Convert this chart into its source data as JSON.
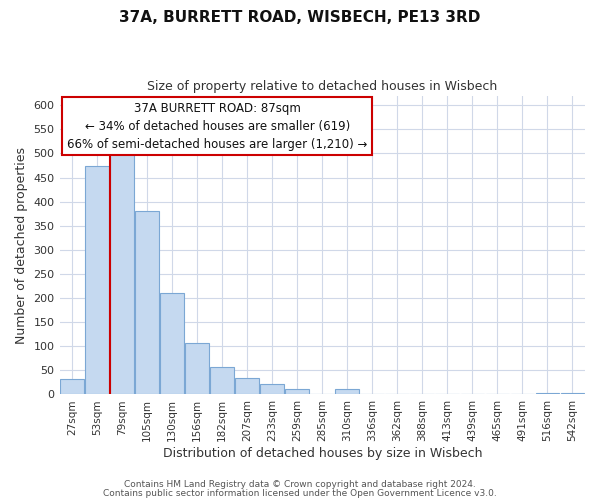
{
  "title": "37A, BURRETT ROAD, WISBECH, PE13 3RD",
  "subtitle": "Size of property relative to detached houses in Wisbech",
  "xlabel": "Distribution of detached houses by size in Wisbech",
  "ylabel": "Number of detached properties",
  "bin_labels": [
    "27sqm",
    "53sqm",
    "79sqm",
    "105sqm",
    "130sqm",
    "156sqm",
    "182sqm",
    "207sqm",
    "233sqm",
    "259sqm",
    "285sqm",
    "310sqm",
    "336sqm",
    "362sqm",
    "388sqm",
    "413sqm",
    "439sqm",
    "465sqm",
    "491sqm",
    "516sqm",
    "542sqm"
  ],
  "bar_values": [
    32,
    474,
    499,
    381,
    210,
    106,
    57,
    35,
    21,
    12,
    0,
    11,
    0,
    0,
    0,
    0,
    0,
    0,
    0,
    2,
    2
  ],
  "bar_color": "#c5d9f0",
  "bar_edge_color": "#7ba7d4",
  "vline_x_index": 2,
  "vline_color": "#cc0000",
  "ylim": [
    0,
    620
  ],
  "yticks": [
    0,
    50,
    100,
    150,
    200,
    250,
    300,
    350,
    400,
    450,
    500,
    550,
    600
  ],
  "annotation_title": "37A BURRETT ROAD: 87sqm",
  "annotation_line1": "← 34% of detached houses are smaller (619)",
  "annotation_line2": "66% of semi-detached houses are larger (1,210) →",
  "footer_line1": "Contains HM Land Registry data © Crown copyright and database right 2024.",
  "footer_line2": "Contains public sector information licensed under the Open Government Licence v3.0.",
  "bg_color": "#ffffff",
  "grid_color": "#d0d8e8"
}
